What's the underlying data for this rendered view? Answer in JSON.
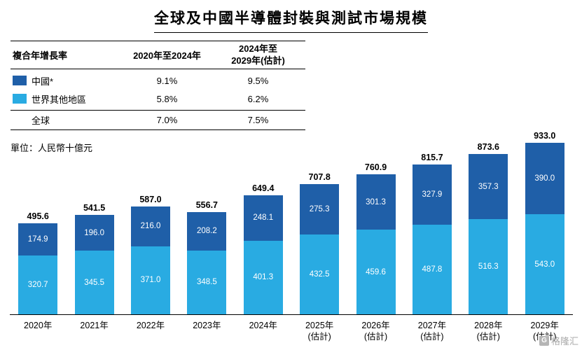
{
  "title": "全球及中國半導體封裝與測試市場規模",
  "unit_label": "單位：人民幣十億元",
  "watermark": {
    "logo": "G",
    "text": "格隆汇"
  },
  "colors": {
    "china_dark_blue": "#1f5fa8",
    "rest_of_world_light_blue": "#29abe2"
  },
  "cagr_table": {
    "header": {
      "col1": "複合年增長率",
      "col2": "2020年至2024年",
      "col3_line1": "2024年至",
      "col3_line2": "2029年(估計)"
    },
    "rows": [
      {
        "label": "中國*",
        "v1": "9.1%",
        "v2": "9.5%"
      },
      {
        "label": "世界其他地區",
        "v1": "5.8%",
        "v2": "6.2%"
      },
      {
        "label": "全球",
        "v1": "7.0%",
        "v2": "7.5%"
      }
    ]
  },
  "chart_data": {
    "type": "bar",
    "stacked": true,
    "title": "全球及中國半導體封裝與測試市場規模",
    "ylabel": "人民幣十億元",
    "ylim": [
      0,
      960
    ],
    "legend_position": "table-top-left",
    "categories": [
      {
        "label": "2020年",
        "note": ""
      },
      {
        "label": "2021年",
        "note": ""
      },
      {
        "label": "2022年",
        "note": ""
      },
      {
        "label": "2023年",
        "note": ""
      },
      {
        "label": "2024年",
        "note": ""
      },
      {
        "label": "2025年",
        "note": "(估計)"
      },
      {
        "label": "2026年",
        "note": "(估計)"
      },
      {
        "label": "2027年",
        "note": "(估計)"
      },
      {
        "label": "2028年",
        "note": "(估計)"
      },
      {
        "label": "2029年",
        "note": "(估計)"
      }
    ],
    "series": [
      {
        "name": "中國",
        "color": "#1f5fa8",
        "values": [
          174.9,
          196.0,
          216.0,
          208.2,
          248.1,
          275.3,
          301.3,
          327.9,
          357.3,
          390.0
        ]
      },
      {
        "name": "世界其他地區",
        "color": "#29abe2",
        "values": [
          320.7,
          345.5,
          371.0,
          348.5,
          401.3,
          432.5,
          459.6,
          487.8,
          516.3,
          543.0
        ]
      }
    ],
    "totals": [
      495.6,
      541.5,
      587.0,
      556.7,
      649.4,
      707.8,
      760.9,
      815.7,
      873.6,
      933.0
    ]
  }
}
